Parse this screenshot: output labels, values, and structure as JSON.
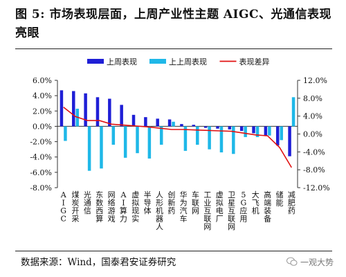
{
  "title": "图 5: 市场表现层面，上周产业性主题 AIGC、光通信表现亮眼",
  "source": "数据来源：Wind，国泰君安证券研究",
  "brand": "一观大势",
  "colors": {
    "this_week": "#1f1fd6",
    "last_week": "#1fb8e8",
    "diff": "#e01010"
  },
  "chart_data": {
    "type": "bar",
    "categories": [
      "AIGC",
      "煤炭开采",
      "光通信",
      "东数西算",
      "网络游戏",
      "AI算力",
      "虚拟现实",
      "半导体",
      "人形机器人",
      "创新药",
      "华为汽车",
      "车联网",
      "工业互联网",
      "虚拟电厂",
      "卫星互联网",
      "5G应用",
      "大飞机",
      "高端装备",
      "储能",
      "减肥药"
    ],
    "series": [
      {
        "name": "上周表现",
        "axis": "left",
        "values": [
          4.7,
          4.6,
          4.3,
          3.8,
          3.6,
          2.8,
          1.5,
          1.2,
          1.0,
          0.9,
          0.3,
          0.2,
          -0.2,
          -0.3,
          -0.4,
          -0.6,
          -0.9,
          -1.2,
          -2.5,
          -3.9
        ]
      },
      {
        "name": "上上周表现",
        "axis": "left",
        "values": [
          -1.9,
          2.3,
          -5.8,
          -5.5,
          -2.4,
          -4.1,
          -3.5,
          -4.2,
          -2.4,
          0.6,
          -3.2,
          -2.4,
          -3.0,
          -3.4,
          -3.6,
          -1.4,
          -1.4,
          -1.2,
          -1.8,
          3.8
        ]
      },
      {
        "name": "表现差异",
        "axis": "right",
        "type": "line",
        "values": [
          6.0,
          3.9,
          3.0,
          3.0,
          2.2,
          2.0,
          1.8,
          1.6,
          1.3,
          1.0,
          1.0,
          0.9,
          0.8,
          0.7,
          0.6,
          0.2,
          -0.2,
          -0.4,
          -3.0,
          -7.5
        ]
      }
    ],
    "y_left": {
      "min": -8,
      "max": 6,
      "step": 2,
      "ticks": [
        "-8.0%",
        "-6.0%",
        "-4.0%",
        "-2.0%",
        "0.0%",
        "2.0%",
        "4.0%",
        "6.0%"
      ]
    },
    "y_right": {
      "min": -12,
      "max": 12,
      "step": 4,
      "ticks": [
        "-12.0%",
        "-8.0%",
        "-4.0%",
        "0.0%",
        "4.0%",
        "8.0%",
        "12.0%"
      ]
    },
    "legend_position": "top-center",
    "grid": false
  }
}
